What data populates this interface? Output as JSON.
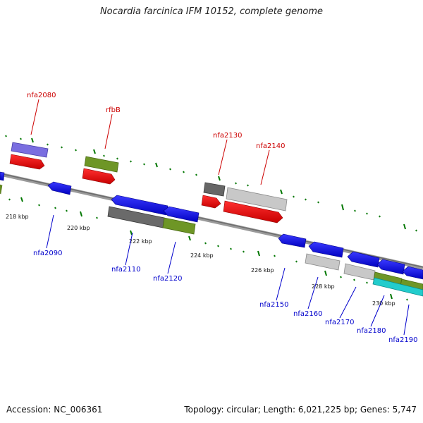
{
  "title": "Nocardia farcinica IFM 10152, complete genome",
  "footer": {
    "accession": "Accession: NC_006361",
    "summary": "Topology: circular; Length: 6,021,225 bp; Genes: 5,747"
  },
  "colors": {
    "strand_forward_label": "#cc0000",
    "strand_reverse_label": "#0000cc",
    "tick": "#007700",
    "backbone": "#8a8a8a"
  },
  "ticks": [
    "218 kbp",
    "220 kbp",
    "222 kbp",
    "224 kbp",
    "226 kbp",
    "228 kbp",
    "230 kbp"
  ],
  "genes_forward": [
    "nfa2080",
    "rfbB",
    "nfa2130",
    "nfa2140"
  ],
  "genes_reverse": [
    "nfa2090",
    "nfa2110",
    "nfa2120",
    "nfa2150",
    "nfa2160",
    "nfa2170",
    "nfa2180",
    "nfa2190"
  ]
}
